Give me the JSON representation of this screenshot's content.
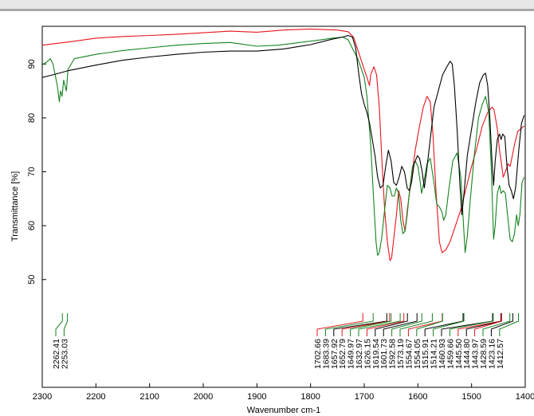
{
  "chart_data": {
    "type": "line",
    "xlabel": "Wavenumber cm-1",
    "ylabel": "Transmittance [%]",
    "xlim": [
      2300,
      1400
    ],
    "ylim": [
      30,
      97
    ],
    "x_ticks": [
      2300,
      2200,
      2100,
      2000,
      1900,
      1800,
      1700,
      1600,
      1500,
      1400
    ],
    "x_tick_labels": [
      "2300",
      "2200",
      "2100",
      "2000",
      "1900",
      "1800",
      "1700",
      "1600",
      "1500",
      "1400"
    ],
    "y_ticks": [
      50,
      60,
      70,
      80,
      90
    ],
    "y_tick_labels": [
      "50",
      "60",
      "70",
      "80",
      "90"
    ],
    "colors": {
      "red": "#e8141c",
      "green": "#15831e",
      "black": "#000000"
    },
    "series": [
      {
        "color": "#e8141c",
        "points": [
          [
            2300,
            93.5
          ],
          [
            2250,
            94.1
          ],
          [
            2200,
            94.8
          ],
          [
            2150,
            95.1
          ],
          [
            2100,
            95.3
          ],
          [
            2050,
            95.5
          ],
          [
            2000,
            95.8
          ],
          [
            1950,
            96.1
          ],
          [
            1900,
            95.9
          ],
          [
            1850,
            96.3
          ],
          [
            1800,
            96.5
          ],
          [
            1750,
            96.3
          ],
          [
            1730,
            96.0
          ],
          [
            1720,
            95.0
          ],
          [
            1710,
            92.0
          ],
          [
            1700,
            89.0
          ],
          [
            1695,
            87.5
          ],
          [
            1690,
            86.0
          ],
          [
            1688,
            88.0
          ],
          [
            1682,
            89.5
          ],
          [
            1677,
            88.0
          ],
          [
            1672,
            82.0
          ],
          [
            1667,
            72.0
          ],
          [
            1662,
            63.0
          ],
          [
            1657,
            57.0
          ],
          [
            1652,
            53.5
          ],
          [
            1649,
            54.0
          ],
          [
            1645,
            57.5
          ],
          [
            1640,
            62.0
          ],
          [
            1636,
            66.5
          ],
          [
            1632,
            65.0
          ],
          [
            1628,
            61.0
          ],
          [
            1624,
            59.0
          ],
          [
            1619,
            63.5
          ],
          [
            1612,
            69.0
          ],
          [
            1605,
            74.0
          ],
          [
            1598,
            78.0
          ],
          [
            1590,
            82.0
          ],
          [
            1583,
            84.0
          ],
          [
            1577,
            83.0
          ],
          [
            1572,
            77.0
          ],
          [
            1566,
            66.0
          ],
          [
            1560,
            57.0
          ],
          [
            1555,
            55.0
          ],
          [
            1548,
            55.5
          ],
          [
            1540,
            57.0
          ],
          [
            1530,
            60.0
          ],
          [
            1520,
            63.0
          ],
          [
            1510,
            67.0
          ],
          [
            1500,
            71.0
          ],
          [
            1490,
            74.5
          ],
          [
            1480,
            78.5
          ],
          [
            1470,
            81.0
          ],
          [
            1462,
            82.0
          ],
          [
            1458,
            81.5
          ],
          [
            1452,
            78.0
          ],
          [
            1448,
            74.0
          ],
          [
            1445,
            72.0
          ],
          [
            1441,
            69.0
          ],
          [
            1437,
            70.0
          ],
          [
            1432,
            71.5
          ],
          [
            1428,
            71.0
          ],
          [
            1424,
            73.0
          ],
          [
            1420,
            75.0
          ],
          [
            1414,
            77.5
          ],
          [
            1408,
            78.0
          ],
          [
            1402,
            78.5
          ]
        ]
      },
      {
        "color": "#15831e",
        "points": [
          [
            2300,
            89.8
          ],
          [
            2290,
            90.5
          ],
          [
            2285,
            91.0
          ],
          [
            2280,
            90.0
          ],
          [
            2272,
            86.0
          ],
          [
            2268,
            83.0
          ],
          [
            2266,
            85.0
          ],
          [
            2263,
            84.0
          ],
          [
            2260,
            87.0
          ],
          [
            2255,
            85.0
          ],
          [
            2252,
            89.0
          ],
          [
            2240,
            91.0
          ],
          [
            2200,
            91.8
          ],
          [
            2150,
            92.5
          ],
          [
            2100,
            93.0
          ],
          [
            2050,
            93.5
          ],
          [
            2000,
            93.8
          ],
          [
            1950,
            94.0
          ],
          [
            1900,
            93.3
          ],
          [
            1860,
            93.5
          ],
          [
            1820,
            94.0
          ],
          [
            1780,
            94.5
          ],
          [
            1760,
            94.8
          ],
          [
            1740,
            95.0
          ],
          [
            1730,
            94.5
          ],
          [
            1720,
            92.5
          ],
          [
            1712,
            91.0
          ],
          [
            1705,
            89.0
          ],
          [
            1700,
            87.5
          ],
          [
            1695,
            84.0
          ],
          [
            1688,
            75.0
          ],
          [
            1682,
            64.0
          ],
          [
            1678,
            57.0
          ],
          [
            1675,
            54.5
          ],
          [
            1672,
            55.0
          ],
          [
            1667,
            58.0
          ],
          [
            1662,
            63.0
          ],
          [
            1657,
            67.5
          ],
          [
            1652,
            67.0
          ],
          [
            1648,
            65.5
          ],
          [
            1644,
            65.5
          ],
          [
            1640,
            67.0
          ],
          [
            1636,
            66.0
          ],
          [
            1632,
            61.0
          ],
          [
            1628,
            58.5
          ],
          [
            1624,
            59.0
          ],
          [
            1620,
            62.0
          ],
          [
            1615,
            67.0
          ],
          [
            1610,
            71.0
          ],
          [
            1605,
            72.0
          ],
          [
            1600,
            71.0
          ],
          [
            1597,
            69.0
          ],
          [
            1593,
            66.0
          ],
          [
            1589,
            68.0
          ],
          [
            1583,
            71.5
          ],
          [
            1577,
            72.5
          ],
          [
            1570,
            68.0
          ],
          [
            1565,
            64.0
          ],
          [
            1560,
            63.5
          ],
          [
            1555,
            62.5
          ],
          [
            1552,
            61.0
          ],
          [
            1548,
            62.0
          ],
          [
            1542,
            67.0
          ],
          [
            1535,
            72.0
          ],
          [
            1527,
            73.5
          ],
          [
            1520,
            69.0
          ],
          [
            1515,
            60.0
          ],
          [
            1512,
            55.0
          ],
          [
            1508,
            58.0
          ],
          [
            1503,
            64.0
          ],
          [
            1495,
            73.0
          ],
          [
            1487,
            80.0
          ],
          [
            1480,
            82.5
          ],
          [
            1474,
            84.0
          ],
          [
            1468,
            81.0
          ],
          [
            1463,
            70.0
          ],
          [
            1459,
            57.5
          ],
          [
            1456,
            60.0
          ],
          [
            1452,
            66.0
          ],
          [
            1448,
            67.5
          ],
          [
            1445,
            66.0
          ],
          [
            1441,
            66.5
          ],
          [
            1437,
            66.0
          ],
          [
            1433,
            62.0
          ],
          [
            1428,
            57.5
          ],
          [
            1424,
            57.0
          ],
          [
            1420,
            58.5
          ],
          [
            1416,
            62.0
          ],
          [
            1413,
            60.0
          ],
          [
            1410,
            62.0
          ],
          [
            1406,
            68.0
          ],
          [
            1402,
            69.0
          ]
        ]
      },
      {
        "color": "#000000",
        "points": [
          [
            2300,
            87.5
          ],
          [
            2280,
            88.0
          ],
          [
            2250,
            88.8
          ],
          [
            2200,
            89.8
          ],
          [
            2150,
            90.7
          ],
          [
            2100,
            91.3
          ],
          [
            2050,
            91.8
          ],
          [
            2000,
            92.2
          ],
          [
            1950,
            92.4
          ],
          [
            1900,
            92.4
          ],
          [
            1850,
            92.8
          ],
          [
            1800,
            93.6
          ],
          [
            1760,
            94.6
          ],
          [
            1740,
            95.0
          ],
          [
            1730,
            95.3
          ],
          [
            1722,
            95.0
          ],
          [
            1716,
            93.0
          ],
          [
            1710,
            88.0
          ],
          [
            1705,
            84.5
          ],
          [
            1700,
            82.5
          ],
          [
            1695,
            81.0
          ],
          [
            1690,
            79.0
          ],
          [
            1685,
            76.0
          ],
          [
            1680,
            73.0
          ],
          [
            1675,
            69.0
          ],
          [
            1670,
            67.0
          ],
          [
            1665,
            67.5
          ],
          [
            1660,
            71.0
          ],
          [
            1655,
            74.0
          ],
          [
            1650,
            72.0
          ],
          [
            1645,
            68.0
          ],
          [
            1640,
            67.5
          ],
          [
            1635,
            69.0
          ],
          [
            1630,
            71.0
          ],
          [
            1625,
            70.0
          ],
          [
            1620,
            67.0
          ],
          [
            1616,
            66.5
          ],
          [
            1612,
            68.0
          ],
          [
            1607,
            71.5
          ],
          [
            1601,
            73.0
          ],
          [
            1597,
            72.5
          ],
          [
            1592,
            70.0
          ],
          [
            1588,
            67.0
          ],
          [
            1584,
            70.0
          ],
          [
            1577,
            76.0
          ],
          [
            1570,
            82.0
          ],
          [
            1562,
            85.0
          ],
          [
            1554,
            88.0
          ],
          [
            1546,
            89.5
          ],
          [
            1540,
            90.5
          ],
          [
            1536,
            90.0
          ],
          [
            1532,
            86.0
          ],
          [
            1527,
            78.0
          ],
          [
            1522,
            68.0
          ],
          [
            1518,
            62.0
          ],
          [
            1514,
            66.0
          ],
          [
            1508,
            73.0
          ],
          [
            1500,
            78.0
          ],
          [
            1492,
            83.0
          ],
          [
            1485,
            86.5
          ],
          [
            1478,
            88.0
          ],
          [
            1474,
            88.3
          ],
          [
            1470,
            86.0
          ],
          [
            1466,
            80.0
          ],
          [
            1462,
            72.0
          ],
          [
            1459,
            67.5
          ],
          [
            1456,
            72.0
          ],
          [
            1452,
            76.0
          ],
          [
            1448,
            77.0
          ],
          [
            1445,
            76.0
          ],
          [
            1442,
            77.0
          ],
          [
            1438,
            76.5
          ],
          [
            1434,
            71.0
          ],
          [
            1430,
            67.5
          ],
          [
            1426,
            66.5
          ],
          [
            1422,
            65.0
          ],
          [
            1418,
            67.0
          ],
          [
            1412,
            74.0
          ],
          [
            1407,
            79.0
          ],
          [
            1402,
            80.5
          ]
        ]
      }
    ],
    "peaks": [
      {
        "label": "2262.41",
        "x": 2262.41,
        "color": "#15831e"
      },
      {
        "label": "2253.03",
        "x": 2253.03,
        "color": "#15831e"
      },
      {
        "label": "1702.66",
        "x": 1702.66,
        "color": "#e8141c"
      },
      {
        "label": "1683.39",
        "x": 1683.39,
        "color": "#15831e"
      },
      {
        "label": "1657.92",
        "x": 1657.92,
        "color": "#000000"
      },
      {
        "label": "1652.79",
        "x": 1652.79,
        "color": "#e8141c"
      },
      {
        "label": "1649.97",
        "x": 1649.97,
        "color": "#15831e"
      },
      {
        "label": "1632.97",
        "x": 1632.97,
        "color": "#15831e"
      },
      {
        "label": "1626.15",
        "x": 1626.15,
        "color": "#e8141c"
      },
      {
        "label": "1619.54",
        "x": 1619.54,
        "color": "#000000"
      },
      {
        "label": "1601.73",
        "x": 1601.73,
        "color": "#000000"
      },
      {
        "label": "1592.58",
        "x": 1592.58,
        "color": "#15831e"
      },
      {
        "label": "1573.19",
        "x": 1573.19,
        "color": "#15831e"
      },
      {
        "label": "1554.67",
        "x": 1554.67,
        "color": "#e8141c"
      },
      {
        "label": "1554.05",
        "x": 1554.05,
        "color": "#15831e"
      },
      {
        "label": "1515.91",
        "x": 1515.91,
        "color": "#000000"
      },
      {
        "label": "1514.21",
        "x": 1514.21,
        "color": "#15831e"
      },
      {
        "label": "1460.93",
        "x": 1460.93,
        "color": "#000000"
      },
      {
        "label": "1459.66",
        "x": 1459.66,
        "color": "#15831e"
      },
      {
        "label": "1445.50",
        "x": 1445.5,
        "color": "#e8141c"
      },
      {
        "label": "1444.80",
        "x": 1444.8,
        "color": "#000000"
      },
      {
        "label": "1443.97",
        "x": 1443.97,
        "color": "#e8141c"
      },
      {
        "label": "1428.59",
        "x": 1428.59,
        "color": "#15831e"
      },
      {
        "label": "1423.16",
        "x": 1423.16,
        "color": "#000000"
      },
      {
        "label": "1412.57",
        "x": 1412.57,
        "color": "#15831e"
      }
    ]
  }
}
